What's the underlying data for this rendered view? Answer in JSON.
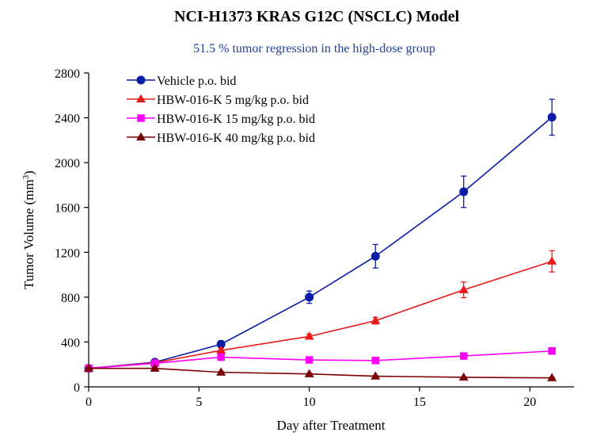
{
  "chart_data": {
    "type": "line",
    "title": "NCI-H1373 KRAS G12C (NSCLC) Model",
    "subtitle": "51.5 % tumor regression in the high-dose group",
    "xlabel": "Day after Treatment",
    "ylabel_main": "Tumor Volume (mm",
    "ylabel_sup": "3",
    "ylabel_close": ")",
    "xlim": [
      0,
      22
    ],
    "ylim": [
      0,
      2800
    ],
    "xticks": [
      0,
      5,
      10,
      15,
      20
    ],
    "yticks": [
      0,
      400,
      800,
      1200,
      1600,
      2000,
      2400,
      2800
    ],
    "grid": false,
    "legend_position": "top-left",
    "x": [
      0,
      3,
      6,
      10,
      13,
      17,
      21
    ],
    "series": [
      {
        "name": "Vehicle p.o. bid",
        "color": "#0a1ca8",
        "marker": "circle",
        "values": [
          165,
          220,
          380,
          800,
          1165,
          1740,
          2405
        ],
        "errors": [
          20,
          20,
          30,
          55,
          105,
          140,
          160
        ]
      },
      {
        "name": "HBW-016-K 5 mg/kg p.o. bid",
        "color": "#e81a1a",
        "marker": "triangle",
        "values": [
          165,
          215,
          325,
          450,
          590,
          865,
          1120
        ],
        "errors": [
          15,
          15,
          20,
          20,
          30,
          70,
          95
        ]
      },
      {
        "name": "HBW-016-K 15 mg/kg p.o. bid",
        "color": "#ff00ff",
        "marker": "square",
        "values": [
          165,
          210,
          265,
          240,
          235,
          275,
          320
        ],
        "errors": [
          10,
          10,
          15,
          10,
          10,
          10,
          10
        ]
      },
      {
        "name": "HBW-016-K 40 mg/kg p.o. bid",
        "color": "#7a0000",
        "marker": "triangle",
        "values": [
          165,
          165,
          130,
          115,
          95,
          85,
          80
        ],
        "errors": [
          10,
          8,
          8,
          6,
          6,
          5,
          5
        ]
      }
    ]
  }
}
